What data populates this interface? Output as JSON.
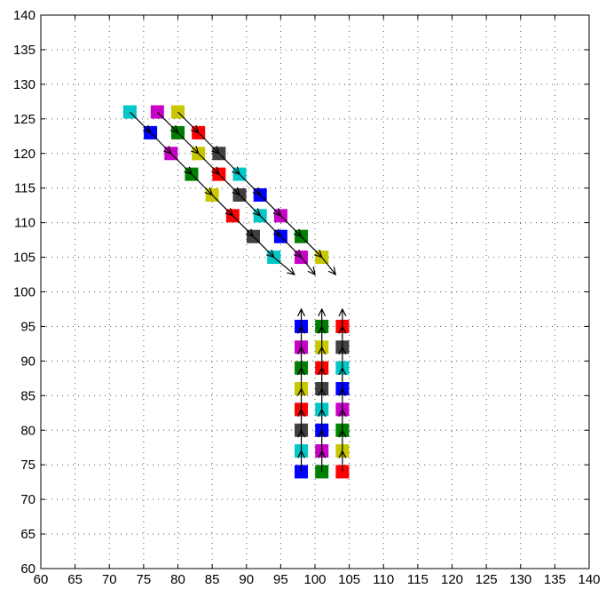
{
  "chart_data": {
    "type": "scatter",
    "title": "",
    "xlabel": "",
    "ylabel": "",
    "xlim": [
      60,
      140
    ],
    "ylim": [
      60,
      140
    ],
    "xticks": [
      60,
      65,
      70,
      75,
      80,
      85,
      90,
      95,
      100,
      105,
      110,
      115,
      120,
      125,
      130,
      135,
      140
    ],
    "yticks": [
      60,
      65,
      70,
      75,
      80,
      85,
      90,
      95,
      100,
      105,
      110,
      115,
      120,
      125,
      130,
      135,
      140
    ],
    "grid": true,
    "colors": {
      "c": "#00c8c8",
      "b": "#0000ff",
      "m": "#c800c8",
      "g": "#008000",
      "y": "#c8c800",
      "r": "#ff0000",
      "k": "#404040"
    },
    "diagonal_chains": [
      {
        "arrow_end": [
          97,
          102.5
        ],
        "points": [
          {
            "x": 73,
            "y": 126,
            "color": "c"
          },
          {
            "x": 76,
            "y": 123,
            "color": "b"
          },
          {
            "x": 79,
            "y": 120,
            "color": "m"
          },
          {
            "x": 82,
            "y": 117,
            "color": "g"
          },
          {
            "x": 85,
            "y": 114,
            "color": "y"
          },
          {
            "x": 88,
            "y": 111,
            "color": "r"
          },
          {
            "x": 91,
            "y": 108,
            "color": "k"
          },
          {
            "x": 94,
            "y": 105,
            "color": "c"
          }
        ]
      },
      {
        "arrow_end": [
          100,
          102.5
        ],
        "points": [
          {
            "x": 77,
            "y": 126,
            "color": "m"
          },
          {
            "x": 80,
            "y": 123,
            "color": "g"
          },
          {
            "x": 83,
            "y": 120,
            "color": "y"
          },
          {
            "x": 86,
            "y": 117,
            "color": "r"
          },
          {
            "x": 89,
            "y": 114,
            "color": "k"
          },
          {
            "x": 92,
            "y": 111,
            "color": "c"
          },
          {
            "x": 95,
            "y": 108,
            "color": "b"
          },
          {
            "x": 98,
            "y": 105,
            "color": "m"
          }
        ]
      },
      {
        "arrow_end": [
          103,
          102.5
        ],
        "points": [
          {
            "x": 80,
            "y": 126,
            "color": "y"
          },
          {
            "x": 83,
            "y": 123,
            "color": "r"
          },
          {
            "x": 86,
            "y": 120,
            "color": "k"
          },
          {
            "x": 89,
            "y": 117,
            "color": "c"
          },
          {
            "x": 92,
            "y": 114,
            "color": "b"
          },
          {
            "x": 95,
            "y": 111,
            "color": "m"
          },
          {
            "x": 98,
            "y": 108,
            "color": "g"
          },
          {
            "x": 101,
            "y": 105,
            "color": "y"
          }
        ]
      }
    ],
    "vertical_chains": [
      {
        "arrow_end": [
          98,
          97.5
        ],
        "points": [
          {
            "x": 98,
            "y": 74,
            "color": "b"
          },
          {
            "x": 98,
            "y": 77,
            "color": "c"
          },
          {
            "x": 98,
            "y": 80,
            "color": "k"
          },
          {
            "x": 98,
            "y": 83,
            "color": "r"
          },
          {
            "x": 98,
            "y": 86,
            "color": "y"
          },
          {
            "x": 98,
            "y": 89,
            "color": "g"
          },
          {
            "x": 98,
            "y": 92,
            "color": "m"
          },
          {
            "x": 98,
            "y": 95,
            "color": "b"
          }
        ]
      },
      {
        "arrow_end": [
          101,
          97.5
        ],
        "points": [
          {
            "x": 101,
            "y": 74,
            "color": "g"
          },
          {
            "x": 101,
            "y": 77,
            "color": "m"
          },
          {
            "x": 101,
            "y": 80,
            "color": "b"
          },
          {
            "x": 101,
            "y": 83,
            "color": "c"
          },
          {
            "x": 101,
            "y": 86,
            "color": "k"
          },
          {
            "x": 101,
            "y": 89,
            "color": "r"
          },
          {
            "x": 101,
            "y": 92,
            "color": "y"
          },
          {
            "x": 101,
            "y": 95,
            "color": "g"
          }
        ]
      },
      {
        "arrow_end": [
          104,
          97.5
        ],
        "points": [
          {
            "x": 104,
            "y": 74,
            "color": "r"
          },
          {
            "x": 104,
            "y": 77,
            "color": "y"
          },
          {
            "x": 104,
            "y": 80,
            "color": "g"
          },
          {
            "x": 104,
            "y": 83,
            "color": "m"
          },
          {
            "x": 104,
            "y": 86,
            "color": "b"
          },
          {
            "x": 104,
            "y": 89,
            "color": "c"
          },
          {
            "x": 104,
            "y": 92,
            "color": "k"
          },
          {
            "x": 104,
            "y": 95,
            "color": "r"
          }
        ]
      }
    ]
  }
}
